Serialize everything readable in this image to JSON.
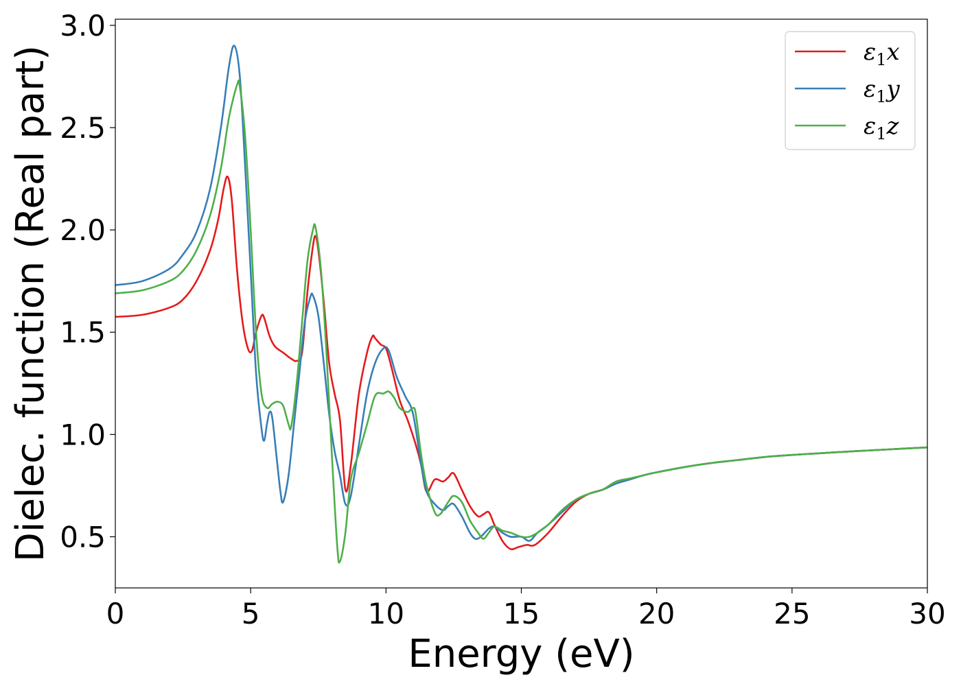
{
  "chart_data": {
    "type": "line",
    "xlabel": "Energy (eV)",
    "ylabel": "Dielec. function (Real part)",
    "xlim": [
      0,
      30
    ],
    "ylim": [
      0.25,
      3.03
    ],
    "xticks": [
      0,
      5,
      10,
      15,
      20,
      25,
      30
    ],
    "yticks": [
      0.5,
      1.0,
      1.5,
      2.0,
      2.5,
      3.0
    ],
    "xtick_labels": [
      "0",
      "5",
      "10",
      "15",
      "20",
      "25",
      "30"
    ],
    "ytick_labels": [
      "0.5",
      "1.0",
      "1.5",
      "2.0",
      "2.5",
      "3.0"
    ],
    "grid": false,
    "legend_position": "top-right",
    "series": [
      {
        "name": "ε1x",
        "legend_base": "ε",
        "legend_sub": "1",
        "legend_var": "x",
        "color": "#e41a1c",
        "points": [
          [
            0,
            1.575
          ],
          [
            1,
            1.585
          ],
          [
            2,
            1.62
          ],
          [
            2.5,
            1.66
          ],
          [
            3,
            1.75
          ],
          [
            3.5,
            1.9
          ],
          [
            3.8,
            2.05
          ],
          [
            4.0,
            2.2
          ],
          [
            4.15,
            2.26
          ],
          [
            4.3,
            2.15
          ],
          [
            4.5,
            1.8
          ],
          [
            4.7,
            1.55
          ],
          [
            4.9,
            1.42
          ],
          [
            5.05,
            1.41
          ],
          [
            5.2,
            1.5
          ],
          [
            5.4,
            1.58
          ],
          [
            5.5,
            1.57
          ],
          [
            5.7,
            1.48
          ],
          [
            5.9,
            1.43
          ],
          [
            6.2,
            1.4
          ],
          [
            6.5,
            1.37
          ],
          [
            6.7,
            1.36
          ],
          [
            6.9,
            1.4
          ],
          [
            7.1,
            1.7
          ],
          [
            7.3,
            1.92
          ],
          [
            7.4,
            1.97
          ],
          [
            7.5,
            1.9
          ],
          [
            7.7,
            1.65
          ],
          [
            7.9,
            1.35
          ],
          [
            8.1,
            1.2
          ],
          [
            8.3,
            1.07
          ],
          [
            8.5,
            0.73
          ],
          [
            8.7,
            0.85
          ],
          [
            9.0,
            1.2
          ],
          [
            9.3,
            1.4
          ],
          [
            9.5,
            1.48
          ],
          [
            9.6,
            1.47
          ],
          [
            9.8,
            1.44
          ],
          [
            10.0,
            1.42
          ],
          [
            10.2,
            1.33
          ],
          [
            10.5,
            1.17
          ],
          [
            10.8,
            1.07
          ],
          [
            11.1,
            0.95
          ],
          [
            11.3,
            0.85
          ],
          [
            11.5,
            0.72
          ],
          [
            11.8,
            0.78
          ],
          [
            12.1,
            0.77
          ],
          [
            12.3,
            0.79
          ],
          [
            12.5,
            0.81
          ],
          [
            12.8,
            0.73
          ],
          [
            13.1,
            0.65
          ],
          [
            13.4,
            0.6
          ],
          [
            13.6,
            0.61
          ],
          [
            13.8,
            0.62
          ],
          [
            14.0,
            0.56
          ],
          [
            14.3,
            0.48
          ],
          [
            14.6,
            0.44
          ],
          [
            14.9,
            0.45
          ],
          [
            15.2,
            0.46
          ],
          [
            15.5,
            0.46
          ],
          [
            16.0,
            0.52
          ],
          [
            16.5,
            0.6
          ],
          [
            17.0,
            0.67
          ],
          [
            17.5,
            0.71
          ],
          [
            18.0,
            0.73
          ],
          [
            18.5,
            0.76
          ],
          [
            19.0,
            0.78
          ],
          [
            19.5,
            0.8
          ],
          [
            20.0,
            0.815
          ],
          [
            21,
            0.84
          ],
          [
            22,
            0.86
          ],
          [
            23,
            0.875
          ],
          [
            24,
            0.89
          ],
          [
            25,
            0.9
          ],
          [
            26,
            0.908
          ],
          [
            27,
            0.916
          ],
          [
            28,
            0.923
          ],
          [
            29,
            0.93
          ],
          [
            30,
            0.937
          ]
        ]
      },
      {
        "name": "ε1y",
        "legend_base": "ε",
        "legend_sub": "1",
        "legend_var": "y",
        "color": "#377eb8",
        "points": [
          [
            0,
            1.73
          ],
          [
            1,
            1.75
          ],
          [
            2,
            1.81
          ],
          [
            2.5,
            1.88
          ],
          [
            3,
            1.99
          ],
          [
            3.5,
            2.2
          ],
          [
            3.9,
            2.5
          ],
          [
            4.2,
            2.8
          ],
          [
            4.4,
            2.9
          ],
          [
            4.6,
            2.75
          ],
          [
            4.8,
            2.3
          ],
          [
            5.0,
            1.8
          ],
          [
            5.2,
            1.3
          ],
          [
            5.4,
            1.03
          ],
          [
            5.5,
            0.97
          ],
          [
            5.6,
            1.05
          ],
          [
            5.7,
            1.11
          ],
          [
            5.8,
            1.08
          ],
          [
            5.95,
            0.9
          ],
          [
            6.1,
            0.72
          ],
          [
            6.2,
            0.67
          ],
          [
            6.4,
            0.8
          ],
          [
            6.6,
            1.05
          ],
          [
            6.8,
            1.3
          ],
          [
            7.0,
            1.55
          ],
          [
            7.2,
            1.67
          ],
          [
            7.3,
            1.68
          ],
          [
            7.5,
            1.58
          ],
          [
            7.7,
            1.35
          ],
          [
            7.9,
            1.1
          ],
          [
            8.1,
            0.92
          ],
          [
            8.3,
            0.8
          ],
          [
            8.5,
            0.66
          ],
          [
            8.7,
            0.7
          ],
          [
            9.0,
            0.95
          ],
          [
            9.3,
            1.2
          ],
          [
            9.6,
            1.35
          ],
          [
            9.9,
            1.42
          ],
          [
            10.1,
            1.41
          ],
          [
            10.4,
            1.28
          ],
          [
            10.7,
            1.19
          ],
          [
            11.0,
            1.1
          ],
          [
            11.3,
            0.85
          ],
          [
            11.5,
            0.72
          ],
          [
            11.8,
            0.66
          ],
          [
            12.1,
            0.63
          ],
          [
            12.3,
            0.65
          ],
          [
            12.5,
            0.66
          ],
          [
            12.8,
            0.6
          ],
          [
            13.1,
            0.52
          ],
          [
            13.3,
            0.49
          ],
          [
            13.5,
            0.5
          ],
          [
            13.8,
            0.54
          ],
          [
            14.0,
            0.55
          ],
          [
            14.3,
            0.52
          ],
          [
            14.6,
            0.5
          ],
          [
            15.0,
            0.5
          ],
          [
            15.3,
            0.48
          ],
          [
            15.6,
            0.52
          ],
          [
            16.0,
            0.56
          ],
          [
            16.5,
            0.62
          ],
          [
            17.0,
            0.68
          ],
          [
            17.5,
            0.71
          ],
          [
            18.0,
            0.73
          ],
          [
            18.5,
            0.76
          ],
          [
            19.0,
            0.78
          ],
          [
            19.5,
            0.8
          ],
          [
            20.0,
            0.815
          ],
          [
            21,
            0.84
          ],
          [
            22,
            0.86
          ],
          [
            23,
            0.875
          ],
          [
            24,
            0.89
          ],
          [
            25,
            0.9
          ],
          [
            26,
            0.908
          ],
          [
            27,
            0.916
          ],
          [
            28,
            0.923
          ],
          [
            29,
            0.93
          ],
          [
            30,
            0.937
          ]
        ]
      },
      {
        "name": "ε1z",
        "legend_base": "ε",
        "legend_sub": "1",
        "legend_var": "z",
        "color": "#4daf4a",
        "points": [
          [
            0,
            1.69
          ],
          [
            1,
            1.705
          ],
          [
            2,
            1.75
          ],
          [
            2.5,
            1.8
          ],
          [
            3,
            1.9
          ],
          [
            3.5,
            2.07
          ],
          [
            3.9,
            2.3
          ],
          [
            4.2,
            2.55
          ],
          [
            4.5,
            2.71
          ],
          [
            4.6,
            2.7
          ],
          [
            4.8,
            2.45
          ],
          [
            5.0,
            2.0
          ],
          [
            5.2,
            1.5
          ],
          [
            5.4,
            1.2
          ],
          [
            5.6,
            1.13
          ],
          [
            5.8,
            1.15
          ],
          [
            6.0,
            1.16
          ],
          [
            6.2,
            1.14
          ],
          [
            6.4,
            1.05
          ],
          [
            6.5,
            1.04
          ],
          [
            6.7,
            1.25
          ],
          [
            6.9,
            1.55
          ],
          [
            7.1,
            1.85
          ],
          [
            7.3,
            2.0
          ],
          [
            7.4,
            2.01
          ],
          [
            7.6,
            1.8
          ],
          [
            7.8,
            1.4
          ],
          [
            8.0,
            0.9
          ],
          [
            8.2,
            0.45
          ],
          [
            8.3,
            0.38
          ],
          [
            8.5,
            0.52
          ],
          [
            8.7,
            0.78
          ],
          [
            9.0,
            0.91
          ],
          [
            9.3,
            1.05
          ],
          [
            9.6,
            1.19
          ],
          [
            9.9,
            1.2
          ],
          [
            10.1,
            1.21
          ],
          [
            10.3,
            1.18
          ],
          [
            10.5,
            1.13
          ],
          [
            10.8,
            1.11
          ],
          [
            11.0,
            1.13
          ],
          [
            11.1,
            1.1
          ],
          [
            11.3,
            0.9
          ],
          [
            11.5,
            0.75
          ],
          [
            11.8,
            0.62
          ],
          [
            12.0,
            0.61
          ],
          [
            12.3,
            0.67
          ],
          [
            12.5,
            0.7
          ],
          [
            12.8,
            0.67
          ],
          [
            13.1,
            0.58
          ],
          [
            13.4,
            0.52
          ],
          [
            13.6,
            0.49
          ],
          [
            13.8,
            0.52
          ],
          [
            14.0,
            0.55
          ],
          [
            14.3,
            0.53
          ],
          [
            14.6,
            0.52
          ],
          [
            15.0,
            0.5
          ],
          [
            15.3,
            0.5
          ],
          [
            15.6,
            0.52
          ],
          [
            16.0,
            0.56
          ],
          [
            16.5,
            0.63
          ],
          [
            17.0,
            0.68
          ],
          [
            17.5,
            0.71
          ],
          [
            18.0,
            0.73
          ],
          [
            18.5,
            0.77
          ],
          [
            19.0,
            0.785
          ],
          [
            19.5,
            0.8
          ],
          [
            20.0,
            0.815
          ],
          [
            21,
            0.84
          ],
          [
            22,
            0.86
          ],
          [
            23,
            0.875
          ],
          [
            24,
            0.89
          ],
          [
            25,
            0.9
          ],
          [
            26,
            0.908
          ],
          [
            27,
            0.916
          ],
          [
            28,
            0.923
          ],
          [
            29,
            0.93
          ],
          [
            30,
            0.937
          ]
        ]
      }
    ]
  }
}
